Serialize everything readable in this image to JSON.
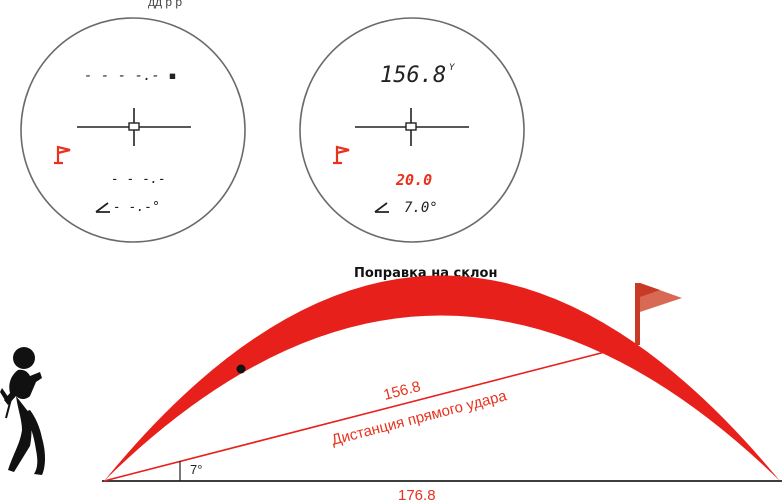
{
  "colors": {
    "accent": "#e8321e",
    "arc": "#e8201c",
    "flag_dark": "#c63a26",
    "flag_light": "#d86a55",
    "ink": "#222222",
    "scope_ring": "#6a6a6a"
  },
  "top_caption_fragment": "дд р р",
  "scope_left": {
    "distance_readout": "- - - -.- ▪",
    "slope_readout": "- - -.-",
    "angle_readout": "- -.-°",
    "angle_icon": "angle-icon",
    "flag_icon": "flag-icon"
  },
  "scope_right": {
    "distance_readout": "156.8",
    "distance_unit": "Y",
    "slope_readout": "20.0",
    "angle_readout": "7.0°",
    "angle_icon": "angle-icon",
    "flag_icon": "flag-icon"
  },
  "diagram": {
    "title": "Поправка на склон",
    "line_distance": "156.8",
    "line_label": "Дистанция прямого удара",
    "angle_label": "7°",
    "ground_distance": "176.8",
    "golfer_icon": "golfer-icon",
    "flag_icon": "flag-icon"
  }
}
